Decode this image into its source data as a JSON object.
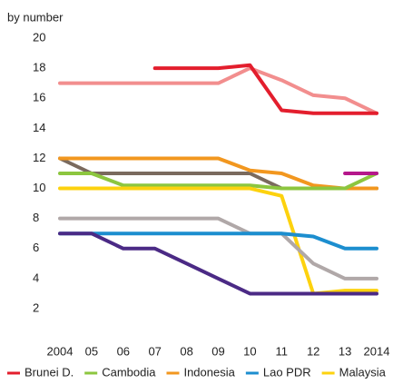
{
  "chart_data": {
    "type": "line",
    "subtitle": "by number",
    "categories": [
      "2004",
      "05",
      "06",
      "07",
      "08",
      "09",
      "10",
      "11",
      "12",
      "13",
      "2014"
    ],
    "ylim": [
      2,
      20
    ],
    "yticks": [
      2,
      4,
      6,
      8,
      10,
      12,
      14,
      16,
      18,
      20
    ],
    "series": [
      {
        "color": "#f28e8e",
        "values": [
          17,
          17,
          17,
          17,
          17,
          17,
          18,
          17.2,
          16.2,
          16,
          15
        ]
      },
      {
        "name": "Brunei D.",
        "color": "#e31e2d",
        "values": [
          null,
          null,
          null,
          18,
          18,
          18,
          18.2,
          15.2,
          15,
          15,
          15
        ]
      },
      {
        "color": "#7a6a5e",
        "values": [
          12,
          11,
          11,
          11,
          11,
          11,
          11,
          10,
          10,
          10,
          10
        ]
      },
      {
        "name": "Indonesia",
        "color": "#f2971f",
        "values": [
          12,
          12,
          12,
          12,
          12,
          12,
          11.2,
          11,
          10.2,
          10,
          10
        ]
      },
      {
        "name": "Cambodia",
        "color": "#8cc63f",
        "values": [
          11,
          11,
          10.2,
          10.2,
          10.2,
          10.2,
          10.2,
          10,
          10,
          10,
          11
        ]
      },
      {
        "color": "#b5178b",
        "values": [
          null,
          null,
          null,
          null,
          null,
          null,
          null,
          null,
          null,
          11,
          11
        ]
      },
      {
        "name": "Malaysia",
        "color": "#fdd20e",
        "values": [
          10,
          10,
          10,
          10,
          10,
          10,
          10,
          9.5,
          3,
          3.2,
          3.2
        ]
      },
      {
        "color": "#b0a8a8",
        "values": [
          8,
          8,
          8,
          8,
          8,
          8,
          7,
          7,
          5,
          4,
          4
        ]
      },
      {
        "name": "Lao PDR",
        "color": "#1c8ecf",
        "values": [
          7,
          7,
          7,
          7,
          7,
          7,
          7,
          7,
          6.8,
          6,
          6
        ]
      },
      {
        "color": "#4b2a85",
        "values": [
          7,
          7,
          6,
          6,
          5,
          4,
          3,
          3,
          3,
          3,
          3
        ]
      }
    ],
    "legend_order": [
      "Brunei D.",
      "Cambodia",
      "Indonesia",
      "Lao PDR",
      "Malaysia"
    ]
  }
}
